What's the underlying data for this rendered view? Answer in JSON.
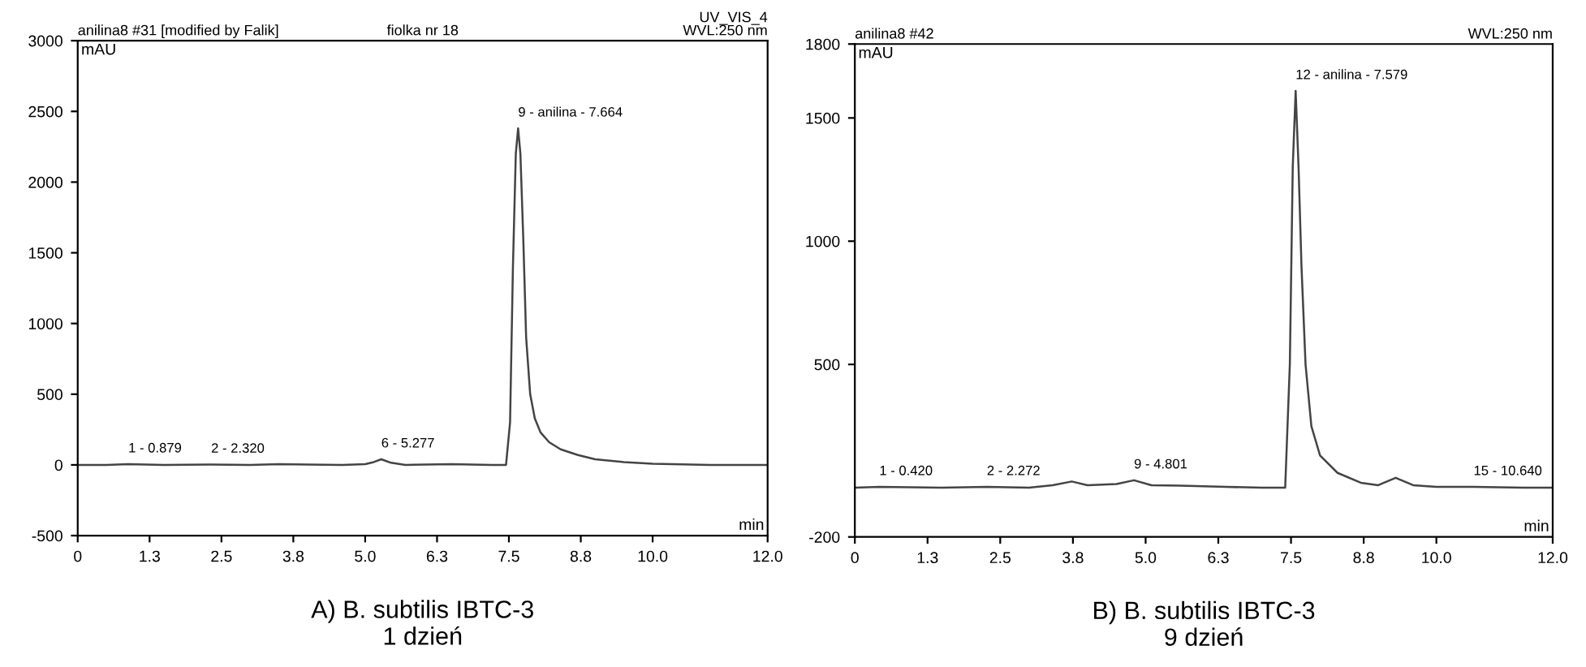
{
  "chart_data": [
    {
      "type": "line",
      "title": "A) B. subtilis IBTC-3\n1 dzień",
      "xlabel": "min",
      "ylabel": "mAU",
      "x": [
        0,
        0.5,
        0.88,
        1.5,
        2.32,
        3.0,
        3.5,
        4.0,
        4.6,
        5.0,
        5.15,
        5.28,
        5.45,
        5.7,
        6.5,
        7.2,
        7.45,
        7.52,
        7.57,
        7.62,
        7.66,
        7.7,
        7.75,
        7.8,
        7.87,
        7.95,
        8.05,
        8.2,
        8.4,
        8.7,
        9.0,
        9.5,
        10.0,
        11.0,
        12.0
      ],
      "series": [
        {
          "color": "#444444",
          "values": [
            0,
            0,
            5,
            0,
            3,
            0,
            5,
            3,
            0,
            5,
            20,
            40,
            15,
            0,
            5,
            0,
            0,
            300,
            1400,
            2200,
            2380,
            2200,
            1600,
            900,
            500,
            330,
            230,
            160,
            110,
            70,
            40,
            20,
            8,
            0,
            0
          ]
        }
      ],
      "xlim": [
        0,
        12
      ],
      "ylim": [
        -500,
        3000
      ],
      "xticks": [
        0,
        {
          "value": 1.25,
          "label": "1.3"
        },
        2.5,
        {
          "value": 3.75,
          "label": "3.8"
        },
        {
          "value": 5,
          "label": "5.0"
        },
        {
          "value": 6.25,
          "label": "6.3"
        },
        7.5,
        {
          "value": 8.75,
          "label": "8.8"
        },
        {
          "value": 10,
          "label": "10.0"
        },
        {
          "value": 12,
          "label": "12.0"
        }
      ],
      "yticks": [
        -500,
        0,
        500,
        1000,
        1500,
        2000,
        2500,
        3000
      ],
      "grid": false,
      "marker": "none",
      "line_style": "solid",
      "annotations": [
        "anilina8 #31 [modified by Falik]",
        "fiolka nr 18",
        "UV_VIS_4\nWVL:250 nm",
        {
          "text": "1 - 0.879",
          "x": 0.88,
          "y": 5
        },
        {
          "text": "2 - 2.320",
          "x": 2.32,
          "y": 3
        },
        {
          "text": "6 - 5.277",
          "x": 5.28,
          "y": 40
        },
        {
          "text": "9 - anilina - 7.664",
          "x": 7.66,
          "y": 2380
        }
      ]
    },
    {
      "type": "line",
      "title": "B) B. subtilis IBTC-3\n9 dzień",
      "xlabel": "min",
      "ylabel": "mAU",
      "x": [
        0,
        0.42,
        1.5,
        2.27,
        3.0,
        3.4,
        3.73,
        4.0,
        4.5,
        4.8,
        5.1,
        5.6,
        6.38,
        7.0,
        7.4,
        7.48,
        7.53,
        7.58,
        7.63,
        7.68,
        7.75,
        7.85,
        8.0,
        8.3,
        8.7,
        9.0,
        9.3,
        9.6,
        10.0,
        10.64,
        11.5,
        12.0
      ],
      "series": [
        {
          "color": "#444444",
          "values": [
            0,
            3,
            0,
            3,
            0,
            10,
            25,
            10,
            15,
            30,
            10,
            8,
            3,
            0,
            0,
            500,
            1300,
            1610,
            1300,
            900,
            500,
            250,
            130,
            60,
            20,
            10,
            40,
            10,
            3,
            3,
            0,
            0
          ]
        }
      ],
      "xlim": [
        0,
        12
      ],
      "ylim": [
        -200,
        1800
      ],
      "xticks": [
        0,
        {
          "value": 1.25,
          "label": "1.3"
        },
        2.5,
        {
          "value": 3.75,
          "label": "3.8"
        },
        {
          "value": 5,
          "label": "5.0"
        },
        {
          "value": 6.25,
          "label": "6.3"
        },
        7.5,
        {
          "value": 8.75,
          "label": "8.8"
        },
        {
          "value": 10,
          "label": "10.0"
        },
        {
          "value": 12,
          "label": "12.0"
        }
      ],
      "yticks": [
        -200,
        500,
        1000,
        1500,
        1800
      ],
      "grid": false,
      "marker": "none",
      "line_style": "solid",
      "annotations": [
        "anilina8 #42",
        "WVL:250 nm",
        {
          "text": "1 - 0.420",
          "x": 0.42,
          "y": 3
        },
        {
          "text": "2 - 2.272",
          "x": 2.27,
          "y": 3
        },
        {
          "text": "9 - 4.801",
          "x": 4.8,
          "y": 30
        },
        {
          "text": "12 - anilina - 7.579",
          "x": 7.58,
          "y": 1610
        },
        {
          "text": "15 - 10.640",
          "x": 10.64,
          "y": 3
        }
      ]
    }
  ]
}
